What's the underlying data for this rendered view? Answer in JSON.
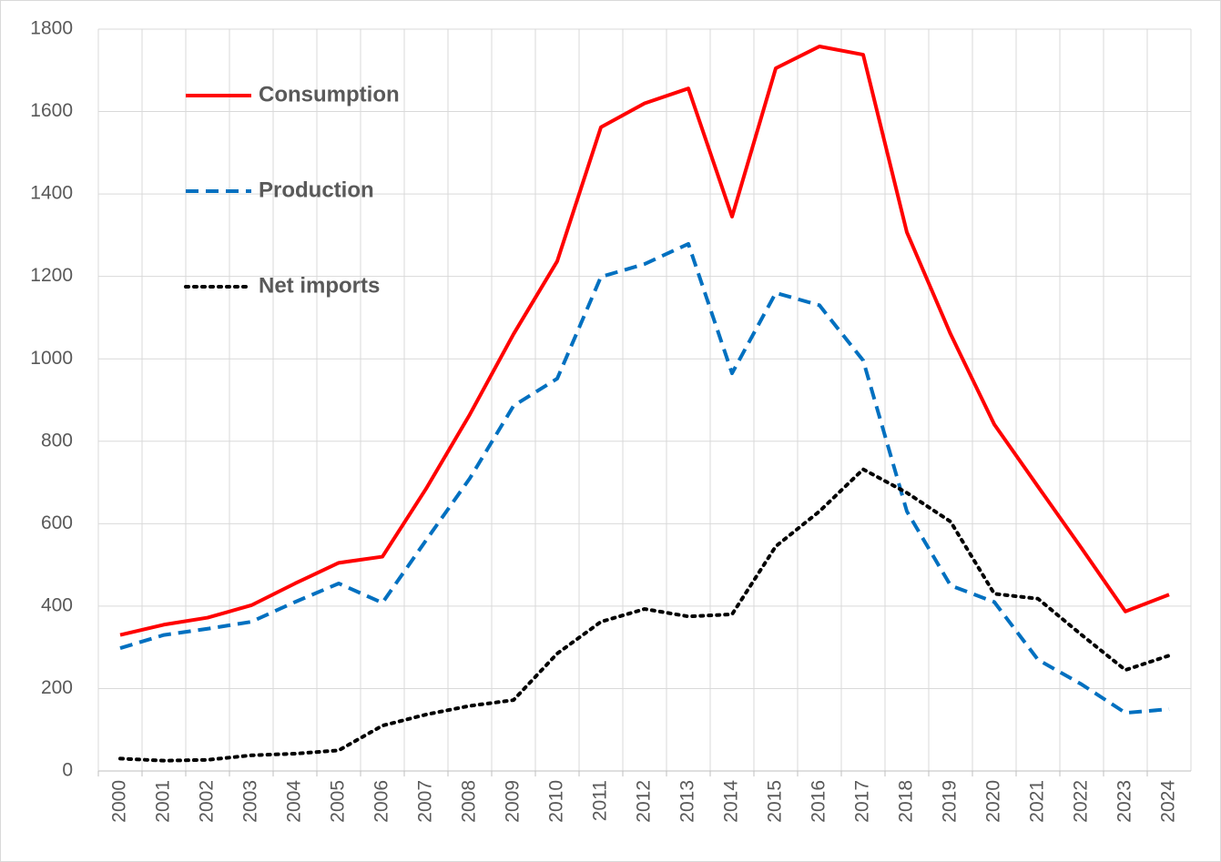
{
  "chart_data": {
    "type": "line",
    "categories": [
      "2000",
      "2001",
      "2002",
      "2003",
      "2004",
      "2005",
      "2006",
      "2007",
      "2008",
      "2009",
      "2010",
      "2011",
      "2012",
      "2013",
      "2014",
      "2015",
      "2016",
      "2017",
      "2018",
      "2019",
      "2020",
      "2021",
      "2022",
      "2023",
      "2024"
    ],
    "series": [
      {
        "name": "Consumption",
        "color": "#ff0000",
        "dash": "solid",
        "values": [
          330,
          355,
          372,
          402,
          455,
          505,
          520,
          685,
          865,
          1060,
          1237,
          1562,
          1620,
          1656,
          1345,
          1705,
          1758,
          1738,
          1307,
          1060,
          841,
          690,
          540,
          387,
          428
        ]
      },
      {
        "name": "Production",
        "color": "#0070c0",
        "dash": "dashed",
        "values": [
          298,
          330,
          345,
          362,
          410,
          455,
          408,
          560,
          710,
          886,
          952,
          1199,
          1230,
          1279,
          965,
          1160,
          1130,
          996,
          630,
          450,
          410,
          270,
          210,
          141,
          150
        ]
      },
      {
        "name": "Net imports",
        "color": "#000000",
        "dash": "dotted",
        "values": [
          30,
          25,
          27,
          38,
          42,
          50,
          110,
          137,
          158,
          172,
          285,
          362,
          393,
          375,
          380,
          545,
          630,
          732,
          675,
          605,
          430,
          418,
          330,
          245,
          280
        ]
      }
    ],
    "ylim": [
      0,
      1800
    ],
    "yticks": [
      0,
      200,
      400,
      600,
      800,
      1000,
      1200,
      1400,
      1600,
      1800
    ],
    "grid": true,
    "legend": "upper left"
  }
}
